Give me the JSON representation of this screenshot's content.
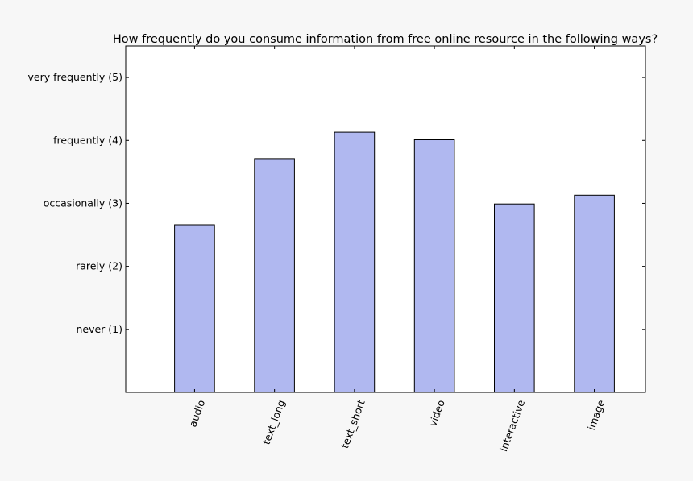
{
  "chart_data": {
    "type": "bar",
    "title": "How frequently do you consume information from free online resource in the following ways?",
    "categories": [
      "audio",
      "text_long",
      "text_short",
      "video",
      "interactive",
      "image"
    ],
    "values": [
      2.66,
      3.71,
      4.13,
      4.01,
      2.99,
      3.13
    ],
    "ylim": [
      0,
      5.5
    ],
    "yticks": [
      {
        "value": 1,
        "label": "never (1)"
      },
      {
        "value": 2,
        "label": "rarely (2)"
      },
      {
        "value": 3,
        "label": "occasionally (3)"
      },
      {
        "value": 4,
        "label": "frequently (4)"
      },
      {
        "value": 5,
        "label": "very frequently (5)"
      }
    ],
    "grid": false,
    "colors": {
      "bar_fill": "#b0b8f0",
      "bar_edge": "#000000",
      "plot_bg": "#ffffff",
      "page_bg": "#f7f7f7"
    }
  }
}
